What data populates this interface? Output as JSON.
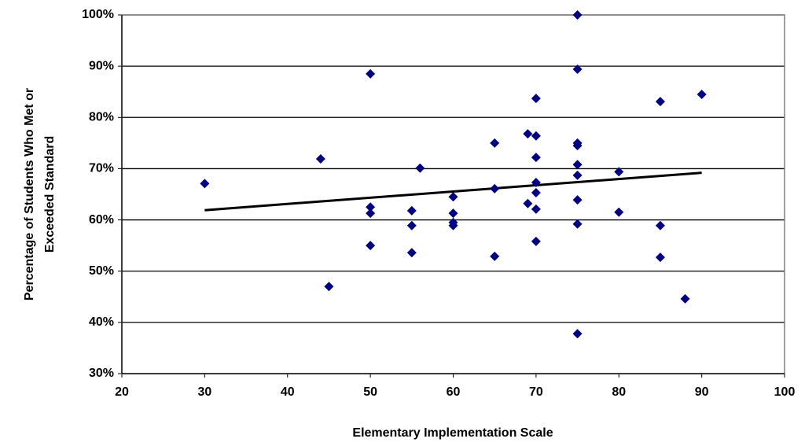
{
  "chart_data": {
    "type": "scatter",
    "xlabel": "Elementary Implementation Scale",
    "ylabel": [
      "Percentage of Students Who Met or",
      "Exceeded Standard"
    ],
    "series": [
      {
        "color": "#000080",
        "x": [
          30,
          44,
          45,
          50,
          50,
          50,
          50,
          55,
          55,
          55,
          56,
          60,
          60,
          60,
          60,
          65,
          65,
          65,
          69,
          69,
          70,
          70,
          70,
          70,
          70,
          70,
          70,
          75,
          75,
          75,
          75,
          75,
          75,
          75,
          75,
          75,
          80,
          80,
          85,
          85,
          85,
          88,
          90
        ],
        "values": [
          67.1,
          71.9,
          47.0,
          88.5,
          62.5,
          61.3,
          55.0,
          61.8,
          58.9,
          53.6,
          70.1,
          64.5,
          61.3,
          59.5,
          58.9,
          75.0,
          66.1,
          52.9,
          76.8,
          63.2,
          83.7,
          76.4,
          72.2,
          67.3,
          65.3,
          62.1,
          55.8,
          100,
          89.4,
          75.0,
          74.5,
          70.8,
          68.7,
          63.9,
          59.2,
          37.8,
          69.4,
          61.5,
          83.1,
          58.9,
          52.7,
          44.6,
          84.5
        ]
      }
    ],
    "trendline": {
      "x": [
        30,
        90
      ],
      "values": [
        61.9,
        69.2
      ],
      "color": "#000000"
    },
    "xlim": [
      20,
      100
    ],
    "xticks": [
      20,
      30,
      40,
      50,
      60,
      70,
      80,
      90,
      100
    ],
    "ylim": [
      30,
      100
    ],
    "yticks": [
      {
        "value": 30,
        "label": "30%"
      },
      {
        "value": 40,
        "label": "40%"
      },
      {
        "value": 50,
        "label": "50%"
      },
      {
        "value": 60,
        "label": "60%"
      },
      {
        "value": 70,
        "label": "70%"
      },
      {
        "value": 80,
        "label": "80%"
      },
      {
        "value": 90,
        "label": "90%"
      },
      {
        "value": 100,
        "label": "100%"
      }
    ],
    "grid": true
  }
}
